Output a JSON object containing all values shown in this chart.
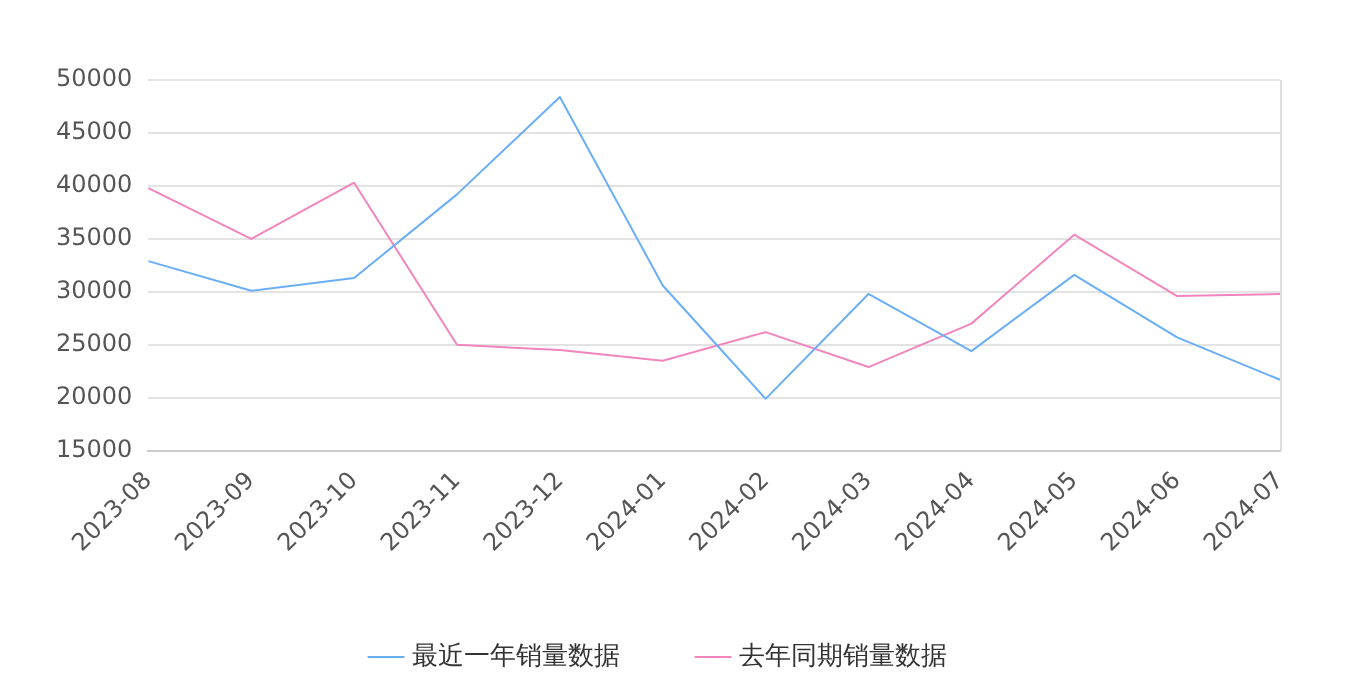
{
  "chart_data": {
    "type": "line",
    "categories": [
      "2023-08",
      "2023-09",
      "2023-10",
      "2023-11",
      "2023-12",
      "2024-01",
      "2024-02",
      "2024-03",
      "2024-04",
      "2024-05",
      "2024-06",
      "2024-07"
    ],
    "series": [
      {
        "name": "最近一年销量数据",
        "color": "#6aaef5",
        "values": [
          32900,
          30100,
          31300,
          39200,
          48400,
          30600,
          19900,
          29800,
          24400,
          31600,
          25700,
          21700
        ]
      },
      {
        "name": "去年同期销量数据",
        "color": "#f285bd",
        "values": [
          39800,
          35000,
          40300,
          25000,
          24500,
          23500,
          26200,
          22900,
          27000,
          35400,
          29600,
          29800
        ]
      }
    ],
    "ylim": [
      15000,
      50000
    ],
    "yticks": [
      15000,
      20000,
      25000,
      30000,
      35000,
      40000,
      45000,
      50000
    ],
    "grid": "y",
    "legend": "bottom",
    "marker": "none",
    "line_style": "solid"
  }
}
